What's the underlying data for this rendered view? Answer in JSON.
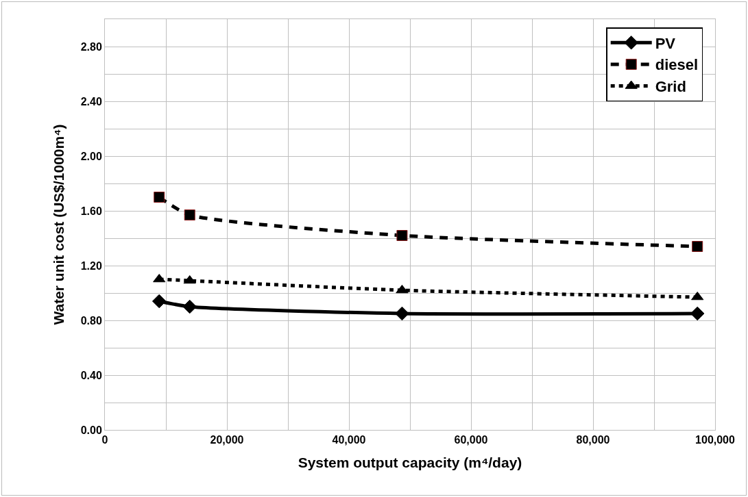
{
  "chart_data": {
    "type": "line",
    "xlabel": "System output capacity (m⁴/day)",
    "ylabel": "Water unit cost (US$/1000m⁴)",
    "x": [
      8900,
      13900,
      48700,
      97100
    ],
    "series": [
      {
        "name": "PV",
        "color": "#000000",
        "values": [
          0.94,
          0.9,
          0.85,
          0.85
        ],
        "marker": "diamond",
        "line_style": "solid"
      },
      {
        "name": "diesel",
        "color": "#000000",
        "values": [
          1.7,
          1.57,
          1.42,
          1.34
        ],
        "marker": "square",
        "line_style": "dashed"
      },
      {
        "name": "Grid",
        "color": "#000000",
        "values": [
          1.1,
          1.09,
          1.02,
          0.97
        ],
        "marker": "triangle",
        "line_style": "dotted"
      }
    ],
    "xlim": [
      0,
      100000
    ],
    "xticks": [
      0,
      {
        "value": 10000,
        "label": null
      },
      {
        "value": 20000,
        "label": "20,000"
      },
      {
        "value": 30000,
        "label": null
      },
      {
        "value": 40000,
        "label": "40,000"
      },
      {
        "value": 50000,
        "label": null
      },
      {
        "value": 60000,
        "label": "60,000"
      },
      {
        "value": 70000,
        "label": null
      },
      {
        "value": 80000,
        "label": "80,000"
      },
      {
        "value": 90000,
        "label": null
      },
      {
        "value": 100000,
        "label": "100,000"
      }
    ],
    "ylim": [
      0,
      3.0
    ],
    "yticks": [
      {
        "value": 0,
        "label": "0.00"
      },
      {
        "value": 0.2,
        "label": null
      },
      {
        "value": 0.4,
        "label": "0.40"
      },
      {
        "value": 0.6,
        "label": null
      },
      {
        "value": 0.8,
        "label": "0.80"
      },
      {
        "value": 1.0,
        "label": null
      },
      {
        "value": 1.2,
        "label": "1.20"
      },
      {
        "value": 1.4,
        "label": null
      },
      {
        "value": 1.6,
        "label": "1.60"
      },
      {
        "value": 1.8,
        "label": null
      },
      {
        "value": 2.0,
        "label": "2.00"
      },
      {
        "value": 2.2,
        "label": null
      },
      {
        "value": 2.4,
        "label": "2.40"
      },
      {
        "value": 2.6,
        "label": null
      },
      {
        "value": 2.8,
        "label": "2.80"
      },
      {
        "value": 3.0,
        "label": null
      }
    ],
    "grid": true,
    "legend": "top right"
  }
}
